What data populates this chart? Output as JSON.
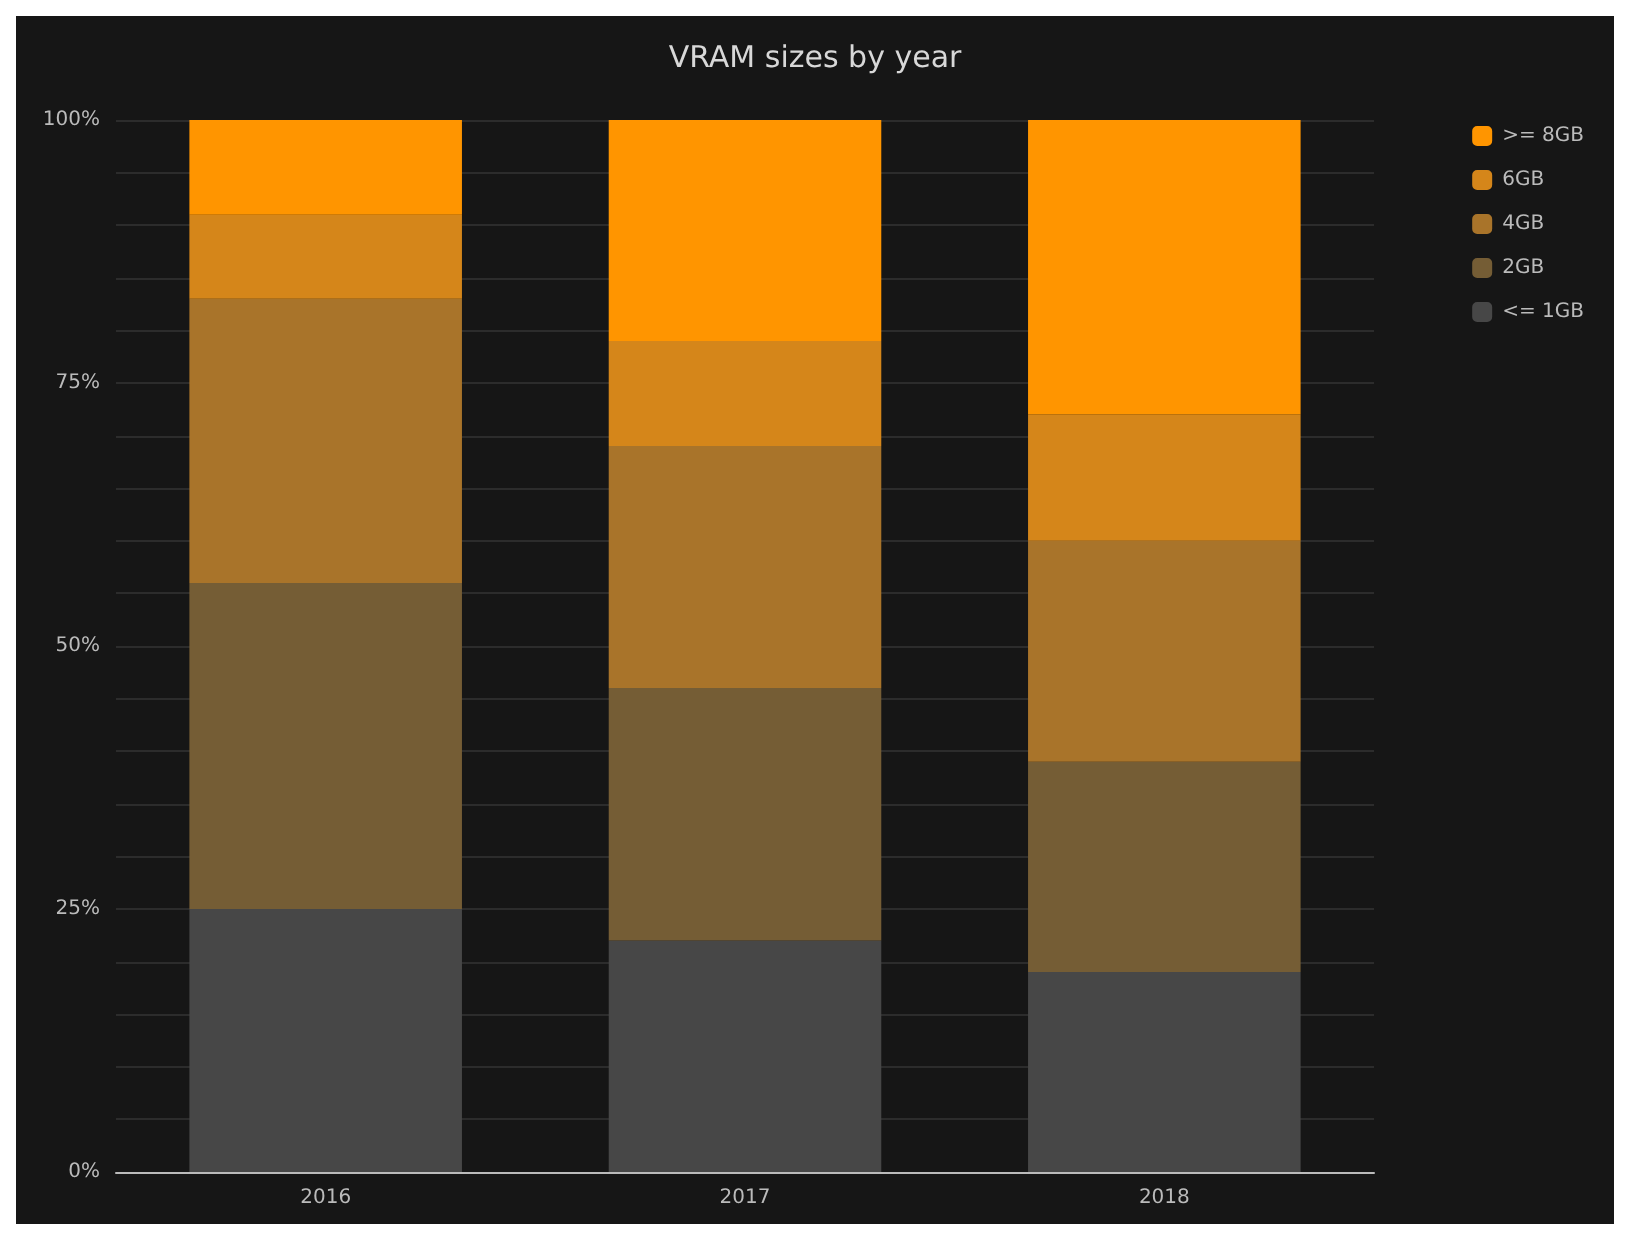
{
  "chart_data": {
    "type": "bar",
    "title": "VRAM sizes by year",
    "categories": [
      "2016",
      "2017",
      "2018"
    ],
    "stacked": true,
    "series": [
      {
        "name": "<= 1GB",
        "color": "#474747",
        "values": [
          25,
          22,
          19
        ]
      },
      {
        "name": "2GB",
        "color": "#755d35",
        "values": [
          31,
          24,
          20
        ]
      },
      {
        "name": "4GB",
        "color": "#a9742a",
        "values": [
          27,
          23,
          21
        ]
      },
      {
        "name": "6GB",
        "color": "#d5861a",
        "values": [
          8,
          10,
          12
        ]
      },
      {
        "name": ">= 8GB",
        "color": "#ff9500",
        "values": [
          9,
          21,
          28
        ]
      }
    ],
    "ylim": [
      0,
      100
    ],
    "yticks": [
      {
        "value": 0,
        "label": "0%"
      },
      {
        "value": 5,
        "label": null
      },
      {
        "value": 10,
        "label": null
      },
      {
        "value": 15,
        "label": null
      },
      {
        "value": 20,
        "label": null
      },
      {
        "value": 25,
        "label": "25%"
      },
      {
        "value": 30,
        "label": null
      },
      {
        "value": 35,
        "label": null
      },
      {
        "value": 40,
        "label": null
      },
      {
        "value": 45,
        "label": null
      },
      {
        "value": 50,
        "label": "50%"
      },
      {
        "value": 55,
        "label": null
      },
      {
        "value": 60,
        "label": null
      },
      {
        "value": 65,
        "label": null
      },
      {
        "value": 70,
        "label": null
      },
      {
        "value": 75,
        "label": "75%"
      },
      {
        "value": 80,
        "label": null
      },
      {
        "value": 85,
        "label": null
      },
      {
        "value": 90,
        "label": null
      },
      {
        "value": 95,
        "label": null
      },
      {
        "value": 100,
        "label": "100%"
      }
    ],
    "grid": "y",
    "legend": "top right"
  }
}
